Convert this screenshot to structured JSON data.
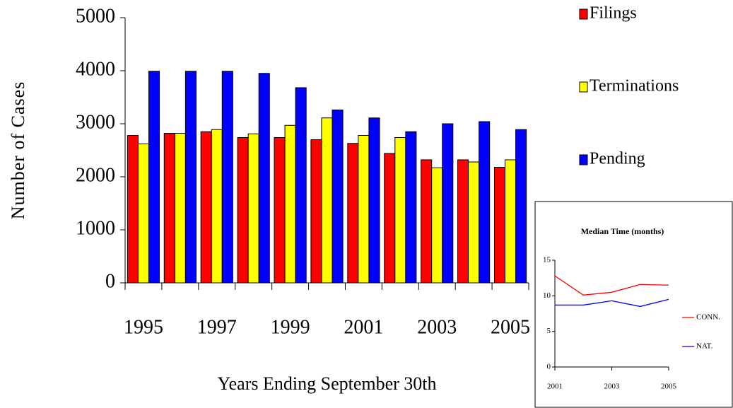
{
  "chart_data": [
    {
      "type": "bar",
      "y_label": "Number of Cases",
      "x_label": "Years Ending September 30th",
      "categories": [
        "1995",
        null,
        "1997",
        null,
        "1999",
        null,
        "2001",
        null,
        "2003",
        null,
        "2005"
      ],
      "series": [
        {
          "name": "Filings",
          "color": "#ff0000",
          "values": [
            2780,
            2820,
            2850,
            2740,
            2740,
            2700,
            2630,
            2440,
            2320,
            2320,
            2180
          ]
        },
        {
          "name": "Terminations",
          "color": "#ffff00",
          "values": [
            2620,
            2820,
            2890,
            2810,
            2970,
            3110,
            2780,
            2740,
            2170,
            2280,
            2320
          ]
        },
        {
          "name": "Pending",
          "color": "#0000ff",
          "values": [
            3990,
            3990,
            3990,
            3950,
            3680,
            3260,
            3110,
            2850,
            3000,
            3040,
            2890
          ]
        }
      ],
      "ylim": [
        0,
        5000
      ],
      "yticks": [
        0,
        1000,
        2000,
        3000,
        4000,
        5000
      ],
      "grid": false,
      "legend": "right"
    },
    {
      "type": "line",
      "title": "Median Time (months)",
      "x": [
        2001,
        2002,
        2003,
        2004,
        2005
      ],
      "series": [
        {
          "name": "CONN.",
          "color": "#ff0000",
          "values": [
            12.8,
            10.1,
            10.5,
            11.6,
            11.5
          ]
        },
        {
          "name": "NAT.",
          "color": "#0000ff",
          "values": [
            8.7,
            8.7,
            9.3,
            8.5,
            9.5
          ]
        }
      ],
      "xlim": [
        2001,
        2005
      ],
      "xticks": [
        2001,
        2003,
        2005
      ],
      "ylim": [
        0,
        15
      ],
      "yticks": [
        0,
        5,
        10,
        15
      ],
      "grid": false,
      "legend": "right"
    }
  ]
}
